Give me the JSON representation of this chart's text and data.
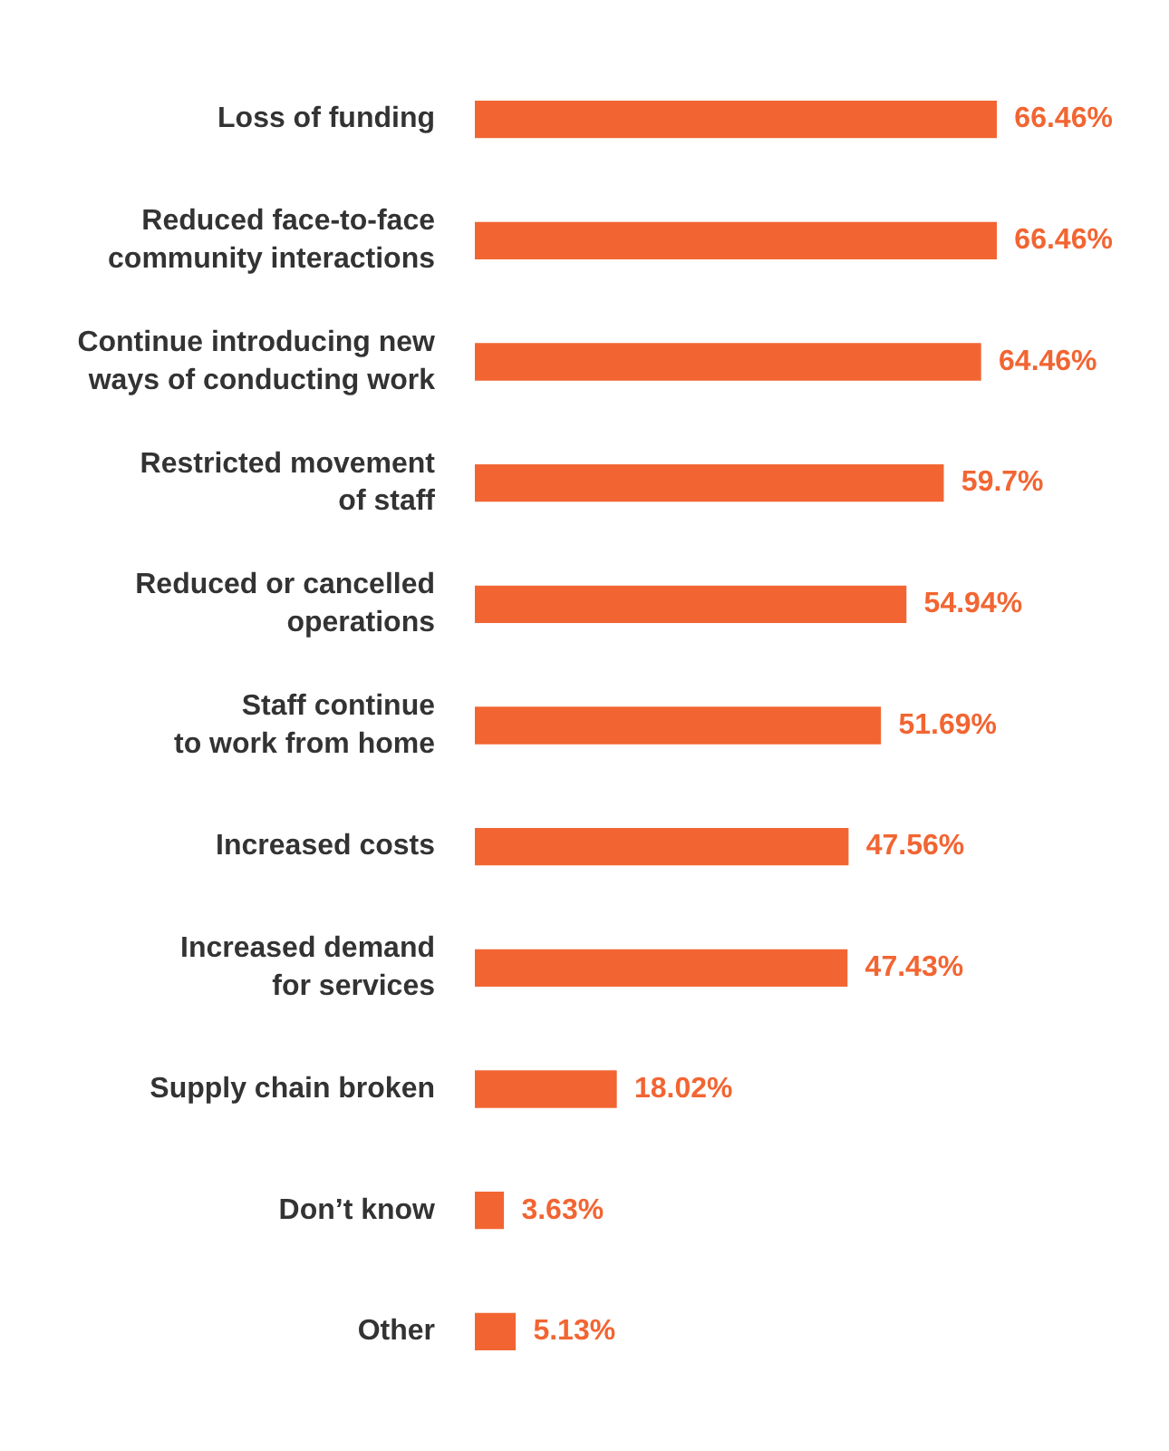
{
  "chart_data": {
    "type": "bar",
    "orientation": "horizontal",
    "legend": false,
    "grid": false,
    "categories": [
      "Loss of funding",
      "Reduced face-to-face\ncommunity interactions",
      "Continue introducing new\nways of conducting work",
      "Restricted movement\nof staff",
      "Reduced or cancelled\noperations",
      "Staff continue\nto work from home",
      "Increased costs",
      "Increased demand\nfor services",
      "Supply chain broken",
      "Don’t know",
      "Other"
    ],
    "values": [
      66.46,
      66.46,
      64.46,
      59.7,
      54.94,
      51.69,
      47.56,
      47.43,
      18.02,
      3.63,
      5.13
    ],
    "value_labels": [
      "66.46%",
      "66.46%",
      "64.46%",
      "59.7%",
      "54.94%",
      "51.69%",
      "47.56%",
      "47.43%",
      "18.02%",
      "3.63%",
      "5.13%"
    ],
    "color": "#f26532"
  }
}
